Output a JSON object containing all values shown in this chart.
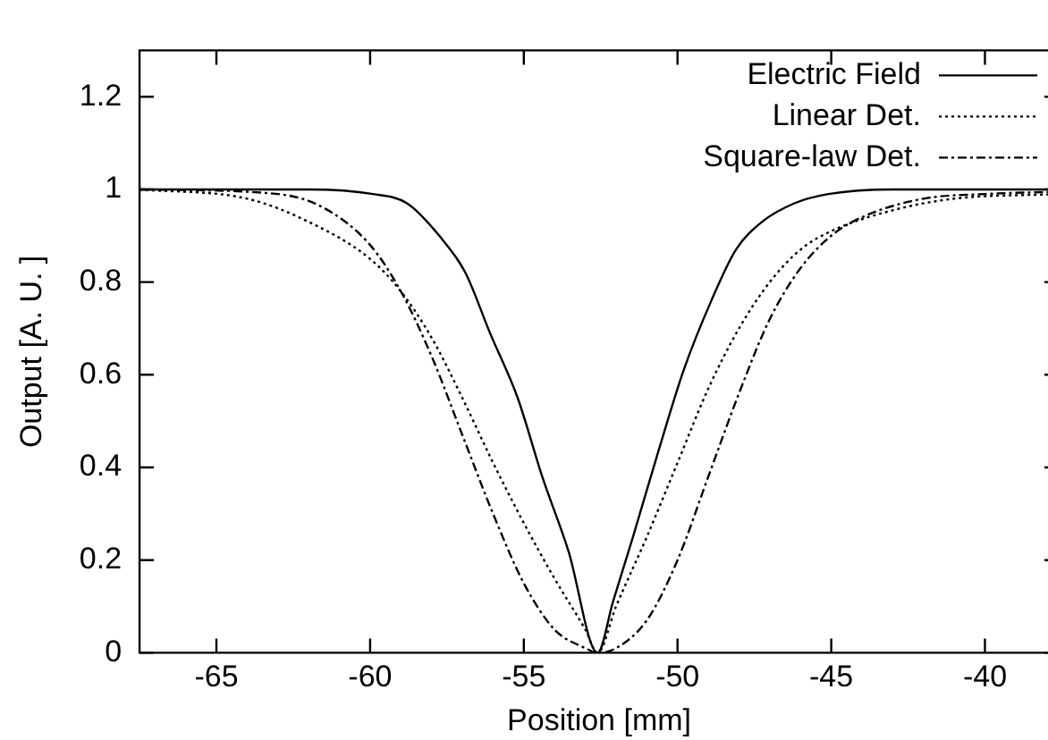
{
  "chart_data": {
    "type": "line",
    "xlabel": "Position [mm]",
    "ylabel": "Output [A. U. ]",
    "xlim": [
      -67.5,
      -37.6
    ],
    "ylim": [
      0,
      1.3
    ],
    "xticks": [
      -65,
      -60,
      -55,
      -50,
      -45,
      -40
    ],
    "yticks": [
      0,
      0.2,
      0.4,
      0.6,
      0.8,
      1,
      1.2
    ],
    "grid": false,
    "legend": "top right",
    "marker": "none",
    "series": [
      {
        "name": "Electric Field",
        "color": "#000000",
        "line_style": "solid",
        "x": [
          -67.5,
          -62,
          -59.9,
          -58.8,
          -57.75,
          -56.9,
          -56.1,
          -55.2,
          -54.4,
          -53.55,
          -52.6,
          -52.1,
          -51.45,
          -50.6,
          -49.8,
          -48.9,
          -48.1,
          -47.25,
          -46.2,
          -45.1,
          -43,
          -37.6
        ],
        "values": [
          1,
          1,
          0.99,
          0.97,
          0.9,
          0.82,
          0.69,
          0.55,
          0.38,
          0.22,
          0,
          0.11,
          0.25,
          0.44,
          0.61,
          0.76,
          0.87,
          0.93,
          0.97,
          0.99,
          1,
          1
        ]
      },
      {
        "name": "Linear Det.",
        "color": "#000000",
        "line_style": "dotted",
        "x": [
          -67.5,
          -64,
          -62,
          -60,
          -59,
          -58,
          -57,
          -56,
          -55,
          -54,
          -53,
          -52.6,
          -52,
          -51,
          -50,
          -49,
          -48,
          -47,
          -46,
          -45,
          -43,
          -41,
          -37.6
        ],
        "values": [
          1,
          0.98,
          0.93,
          0.85,
          0.78,
          0.68,
          0.55,
          0.41,
          0.28,
          0.16,
          0.05,
          0,
          0.1,
          0.25,
          0.41,
          0.57,
          0.7,
          0.8,
          0.87,
          0.91,
          0.955,
          0.98,
          0.99
        ]
      },
      {
        "name": "Square-law Det.",
        "color": "#000000",
        "line_style": "dashed",
        "x": [
          -67.5,
          -63,
          -61.5,
          -60,
          -59,
          -58,
          -57,
          -56,
          -55,
          -54,
          -53,
          -52.6,
          -52,
          -51,
          -50,
          -49,
          -48,
          -47,
          -46,
          -45,
          -44,
          -42,
          -40,
          -37.6
        ],
        "values": [
          1,
          0.99,
          0.96,
          0.88,
          0.78,
          0.64,
          0.47,
          0.3,
          0.15,
          0.05,
          0.01,
          0,
          0.01,
          0.07,
          0.2,
          0.38,
          0.56,
          0.72,
          0.83,
          0.9,
          0.94,
          0.98,
          0.99,
          0.995
        ]
      }
    ]
  }
}
